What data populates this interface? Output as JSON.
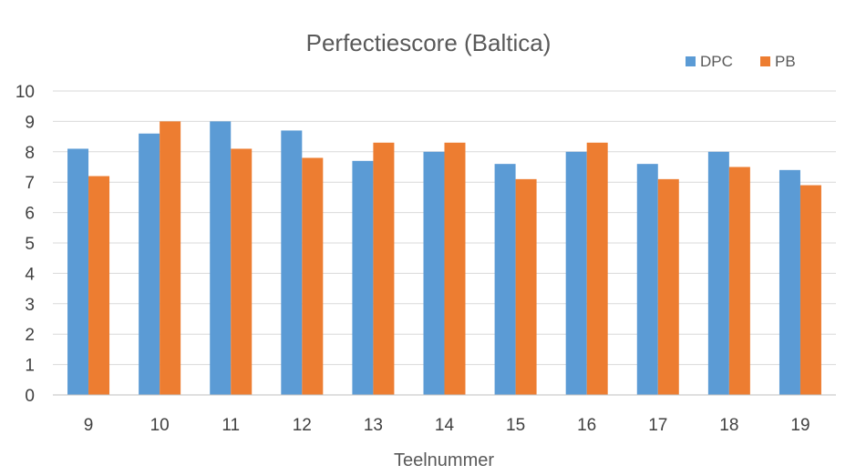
{
  "chart_data": {
    "type": "bar",
    "title": "Perfectiescore (Baltica)",
    "xlabel": "Teelnummer",
    "ylabel": "",
    "ylim": [
      0,
      10
    ],
    "yticks": [
      "0",
      "1",
      "2",
      "3",
      "4",
      "5",
      "6",
      "7",
      "8",
      "9",
      "10"
    ],
    "categories": [
      "9",
      "10",
      "11",
      "12",
      "13",
      "14",
      "15",
      "16",
      "17",
      "18",
      "19"
    ],
    "series": [
      {
        "name": "DPC",
        "color": "#5B9BD5",
        "values": [
          8.1,
          8.6,
          9.0,
          8.7,
          7.7,
          8.0,
          7.6,
          8.0,
          7.6,
          8.0,
          7.4
        ]
      },
      {
        "name": "PB",
        "color": "#ED7D31",
        "values": [
          7.2,
          9.0,
          8.1,
          7.8,
          8.3,
          8.3,
          7.1,
          8.3,
          7.1,
          7.5,
          6.9
        ]
      }
    ],
    "grid": true,
    "legend": "top-right"
  }
}
